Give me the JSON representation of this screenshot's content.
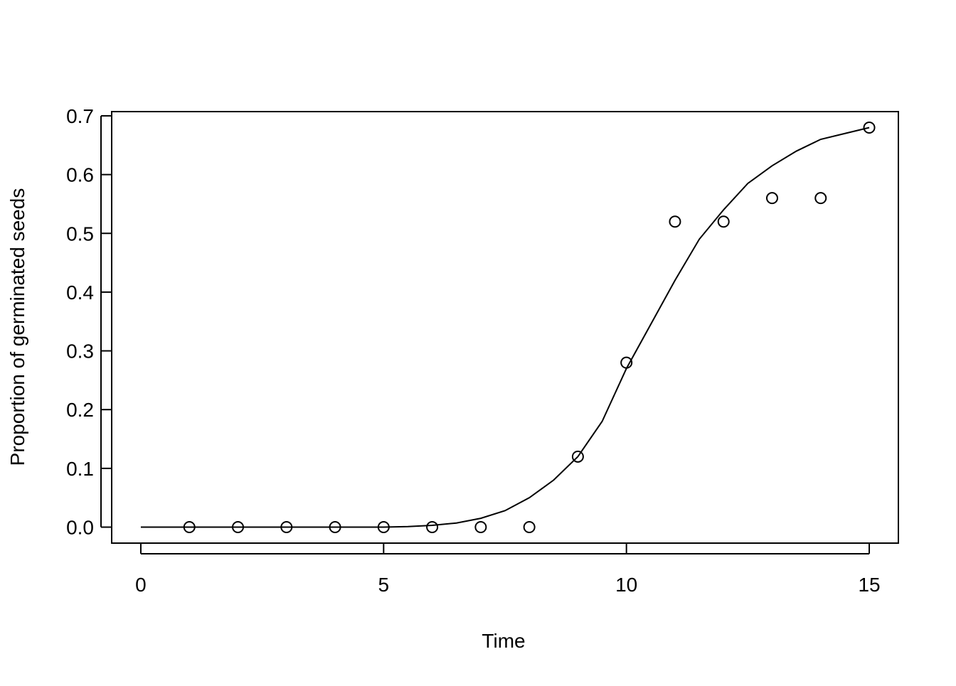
{
  "chart_data": {
    "type": "scatter",
    "xlabel": "Time",
    "ylabel": "Proportion of germinated seeds",
    "xlim": [
      -0.6,
      15.6
    ],
    "ylim": [
      -0.0272,
      0.7072
    ],
    "xticks": [
      0,
      5,
      10,
      15
    ],
    "yticks": [
      {
        "value": 0,
        "label": "0.0"
      },
      0.1,
      0.2,
      0.3,
      0.4,
      0.5,
      0.6,
      0.7
    ],
    "color": "#000000",
    "x": [
      1,
      2,
      3,
      4,
      5,
      6,
      7,
      8,
      9,
      10,
      11,
      12,
      13,
      14,
      15
    ],
    "values": [
      0,
      0,
      0,
      0,
      0,
      0,
      0,
      0,
      0.12,
      0.28,
      0.52,
      0.52,
      0.56,
      0.56,
      0.68
    ],
    "fit": {
      "type": "line",
      "x": [
        0,
        0.5,
        1,
        1.5,
        2,
        2.5,
        3,
        3.5,
        4,
        4.5,
        5,
        5.5,
        6,
        6.5,
        7,
        7.5,
        8,
        8.5,
        9,
        9.5,
        10,
        10.5,
        11,
        11.5,
        12,
        12.5,
        13,
        13.5,
        14,
        14.5,
        15
      ],
      "values": [
        0,
        0,
        0,
        0,
        0,
        0,
        0,
        0,
        0,
        0,
        0,
        0.001,
        0.003,
        0.007,
        0.015,
        0.028,
        0.05,
        0.08,
        0.12,
        0.18,
        0.27,
        0.345,
        0.42,
        0.49,
        0.54,
        0.585,
        0.615,
        0.64,
        0.66,
        0.67,
        0.68
      ]
    }
  }
}
